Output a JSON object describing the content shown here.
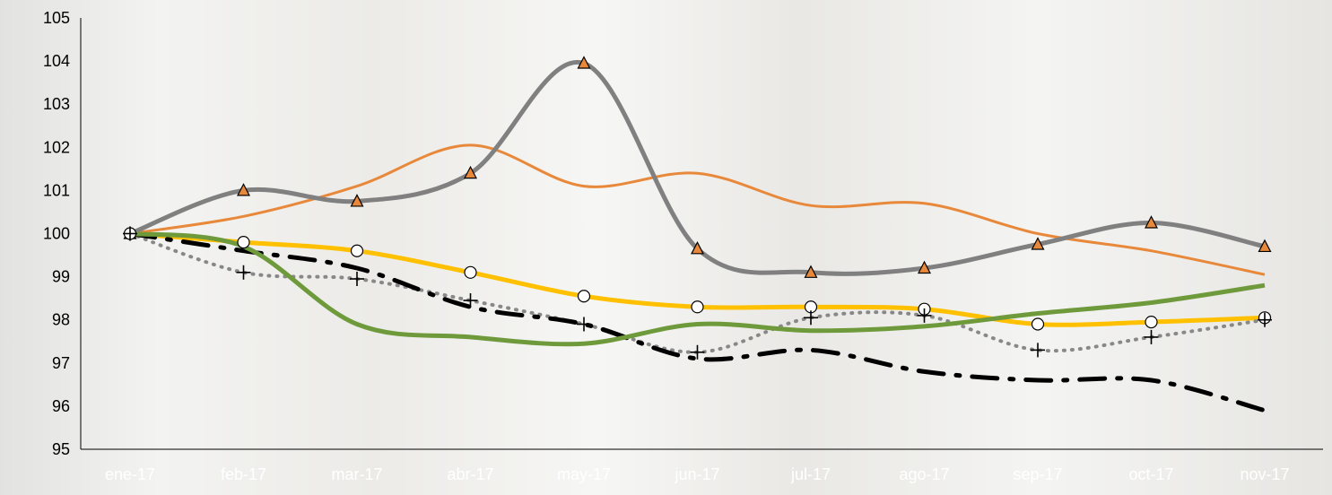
{
  "chart_data": {
    "type": "line",
    "categories": [
      "ene-17",
      "feb-17",
      "mar-17",
      "abr-17",
      "may-17",
      "jun-17",
      "jul-17",
      "ago-17",
      "sep-17",
      "oct-17",
      "nov-17"
    ],
    "y_ticks": [
      "95",
      "96",
      "97",
      "98",
      "99",
      "100",
      "101",
      "102",
      "103",
      "104",
      "105"
    ],
    "ylim": [
      95,
      105
    ],
    "grid": false,
    "legend": "none",
    "series": [
      {
        "color": "#e8883a",
        "style": "thin-solid",
        "marker": "none",
        "values": [
          100,
          100.4,
          101.1,
          102.05,
          101.1,
          101.4,
          100.65,
          100.7,
          100.0,
          99.6,
          99.05
        ]
      },
      {
        "color": "#808080",
        "style": "thick-solid",
        "marker": "triangle",
        "marker_color": "#e8883a",
        "values": [
          100,
          101.0,
          100.75,
          101.4,
          103.95,
          99.65,
          99.1,
          99.2,
          99.75,
          100.25,
          99.7
        ]
      },
      {
        "color": "#ffc000",
        "style": "thick-solid",
        "marker": "circle",
        "marker_color": "#ffffff",
        "values": [
          100,
          99.8,
          99.6,
          99.1,
          98.55,
          98.3,
          98.3,
          98.25,
          97.9,
          97.95,
          98.05
        ]
      },
      {
        "color": "#888888",
        "style": "dotted",
        "marker": "plus",
        "marker_color": "#000000",
        "values": [
          100,
          99.1,
          98.95,
          98.45,
          97.9,
          97.25,
          98.05,
          98.1,
          97.3,
          97.6,
          98.0
        ]
      },
      {
        "color": "#000000",
        "style": "dash-dot",
        "marker": "none",
        "values": [
          100,
          99.6,
          99.2,
          98.3,
          97.9,
          97.1,
          97.3,
          96.8,
          96.6,
          96.6,
          95.9
        ]
      },
      {
        "color": "#6e9a3c",
        "style": "thick-solid",
        "marker": "none",
        "values": [
          100,
          99.7,
          97.9,
          97.6,
          97.45,
          97.9,
          97.75,
          97.85,
          98.15,
          98.4,
          98.8
        ]
      }
    ]
  }
}
